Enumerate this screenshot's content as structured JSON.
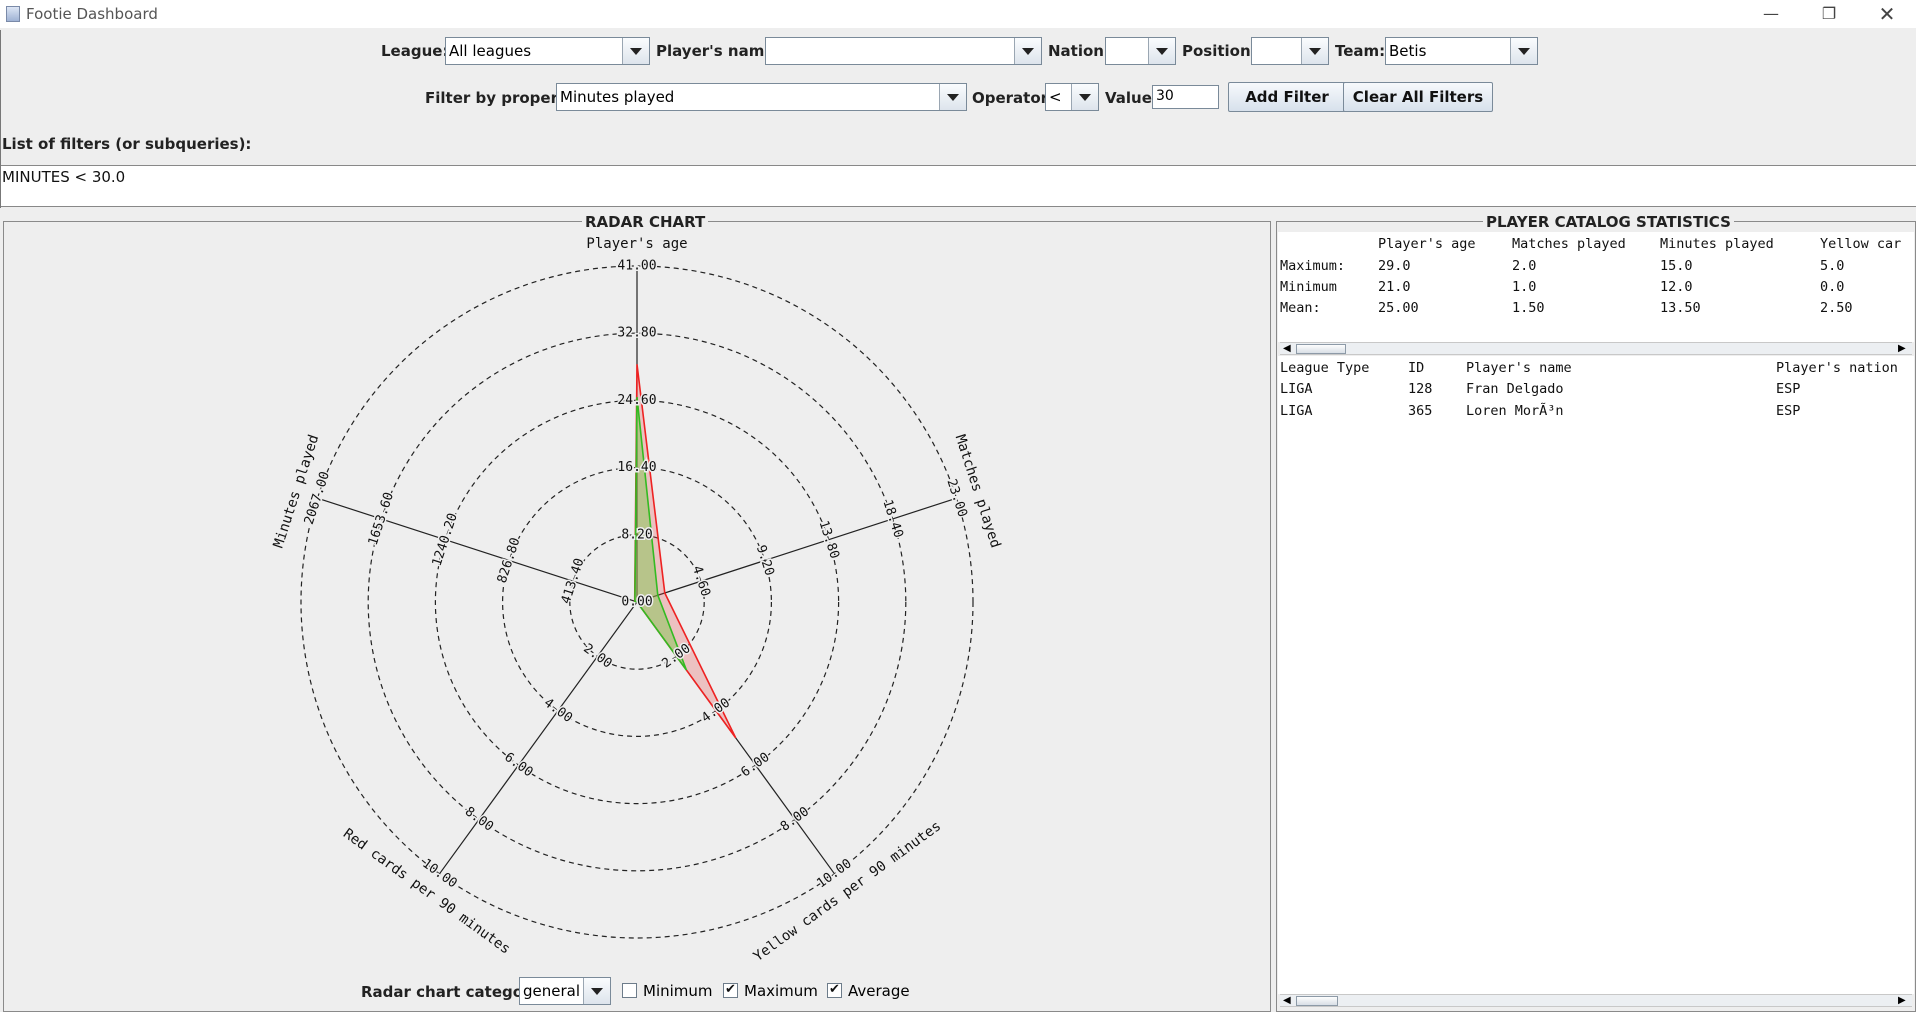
{
  "window": {
    "title": "Footie Dashboard",
    "minimize_icon": "minimize-icon",
    "maximize_icon": "restore-icon",
    "close_icon": "close-icon"
  },
  "filters": {
    "league_label": "League:",
    "league_value": "All leagues",
    "player_name_label": "Player's name:",
    "player_name_value": "",
    "nation_label": "Nation:",
    "nation_value": "",
    "position_label": "Position:",
    "position_value": "",
    "team_label": "Team:",
    "team_value": "Betis",
    "property_label": "Filter by property:",
    "property_value": "Minutes played",
    "operator_label": "Operator:",
    "operator_value": "<",
    "value_label": "Value:",
    "value_value": "30",
    "add_button": "Add Filter",
    "clear_button": "Clear All Filters",
    "list_label": "List of filters (or subqueries):",
    "list_items": [
      "MINUTES < 30.0"
    ]
  },
  "radar_panel": {
    "title": "RADAR CHART",
    "category_label": "Radar chart category:",
    "category_value": "general",
    "minimum_label": "Minimum",
    "minimum_checked": false,
    "maximum_label": "Maximum",
    "maximum_checked": true,
    "average_label": "Average",
    "average_checked": true
  },
  "chart_data": {
    "type": "radar",
    "axes": [
      {
        "label": "Player's age",
        "ticks": [
          "0.00",
          "8.20",
          "16.40",
          "24.60",
          "32.80",
          "41.00"
        ],
        "max": 41.0
      },
      {
        "label": "Matches played",
        "ticks": [
          "4.60",
          "9.20",
          "13.80",
          "18.40",
          "23.00"
        ],
        "max": 23.0
      },
      {
        "label": "Yellow cards per 90 minutes",
        "ticks": [
          "2.00",
          "4.00",
          "6.00",
          "8.00",
          "10.00"
        ],
        "max": 10.0
      },
      {
        "label": "Red cards per 90 minutes",
        "ticks": [
          "2.00",
          "4.00",
          "6.00",
          "8.00",
          "10.00"
        ],
        "max": 10.0
      },
      {
        "label": "Minutes played",
        "ticks": [
          "413.40",
          "826.80",
          "1240.20",
          "1653.60",
          "2067.00"
        ],
        "max": 2067.0
      }
    ],
    "series": [
      {
        "name": "Maximum",
        "values": [
          29.0,
          2.0,
          5.0,
          0.0,
          15.0
        ],
        "stroke": "#ee2222",
        "fill": "rgba(235,80,80,0.28)"
      },
      {
        "name": "Average",
        "values": [
          25.0,
          1.5,
          2.5,
          0.0,
          13.5
        ],
        "stroke": "#33bb22",
        "fill": "rgba(120,200,70,0.45)"
      }
    ],
    "grid": "dashed circles"
  },
  "stats_panel": {
    "title": "PLAYER CATALOG STATISTICS",
    "columns": [
      "",
      "Player's age",
      "Matches played",
      "Minutes played",
      "Yellow car"
    ],
    "rows": [
      [
        "Maximum:",
        "29.0",
        "2.0",
        "15.0",
        "5.0"
      ],
      [
        "Minimum",
        "21.0",
        "1.0",
        "12.0",
        "0.0"
      ],
      [
        "Mean:",
        "25.00",
        "1.50",
        "13.50",
        "2.50"
      ]
    ],
    "players_columns": [
      "League Type",
      "ID",
      "Player's name",
      "Player's nation"
    ],
    "players": [
      [
        "LIGA",
        "128",
        "Fran Delgado",
        "ESP"
      ],
      [
        "LIGA",
        "365",
        "Loren MorÃ³n",
        "ESP"
      ]
    ]
  }
}
